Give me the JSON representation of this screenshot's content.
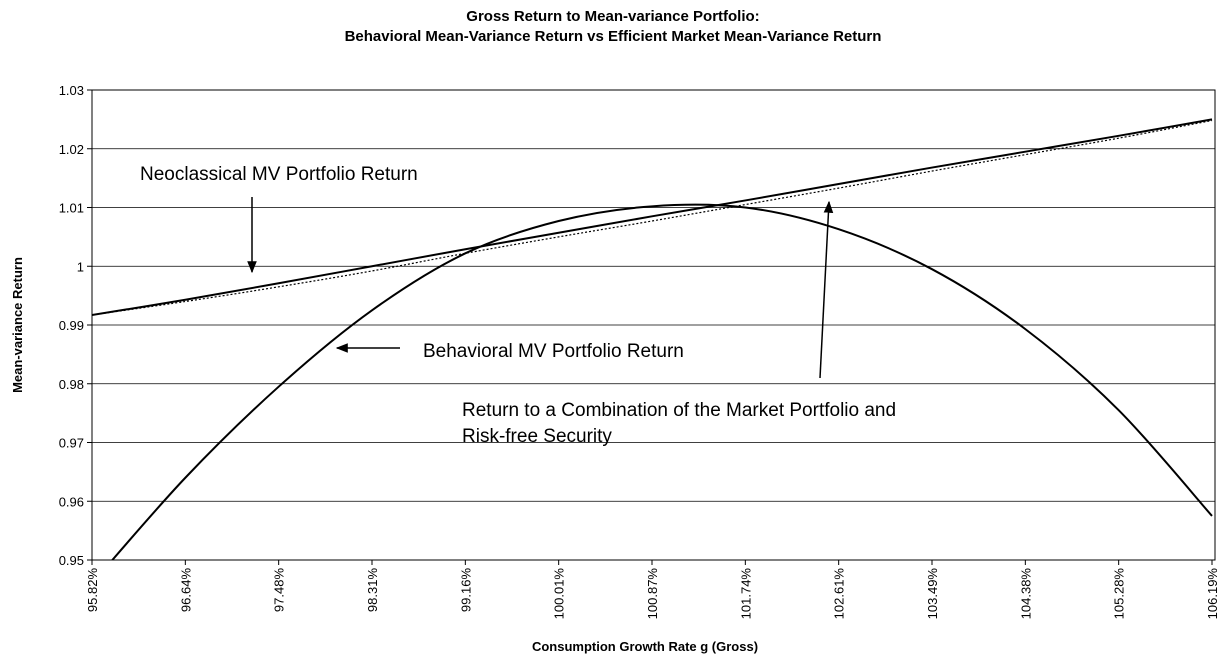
{
  "chart_data": {
    "type": "line",
    "title": [
      "Gross Return to Mean-variance Portfolio:",
      "Behavioral Mean-Variance Return vs Efficient Market Mean-Variance Return"
    ],
    "x_label": "Consumption Growth Rate g (Gross)",
    "y_label": "Mean-variance Return",
    "categories": [
      "95.82%",
      "96.64%",
      "97.48%",
      "98.31%",
      "99.16%",
      "100.01%",
      "100.87%",
      "101.74%",
      "102.61%",
      "103.49%",
      "104.38%",
      "105.28%",
      "106.19%"
    ],
    "series": [
      {
        "color": "#000000",
        "style": "solid",
        "values": [
          0.9917,
          0.9943,
          0.9971,
          1.0,
          1.0029,
          1.0057,
          1.0085,
          1.0112,
          1.014,
          1.0168,
          1.0195,
          1.0222,
          1.025
        ]
      },
      {
        "color": "#000000",
        "style": "dotted",
        "values": [
          0.9917,
          0.994,
          0.9965,
          0.9992,
          1.0022,
          1.005,
          1.0077,
          1.0105,
          1.0133,
          1.0162,
          1.019,
          1.0218,
          1.0248
        ]
      },
      {
        "color": "#000000",
        "style": "solid",
        "values": [
          0.946,
          0.964,
          0.9795,
          0.9925,
          1.0022,
          1.0077,
          1.0102,
          1.01,
          1.0063,
          0.9995,
          0.9893,
          0.9755,
          0.9575
        ]
      }
    ],
    "ylim": [
      0.95,
      1.03
    ],
    "yticks": [
      0.95,
      0.96,
      0.97,
      0.98,
      0.99,
      {
        "value": 1.0,
        "label": "1"
      },
      1.01,
      1.02,
      1.03
    ],
    "grid": true,
    "annotations": [
      {
        "text": [
          "Neoclassical MV Portfolio Return"
        ]
      },
      {
        "text": [
          "Behavioral MV Portfolio Return"
        ]
      },
      {
        "text": [
          "Return to a Combination of the Market Portfolio and",
          "Risk-free Security"
        ]
      }
    ]
  }
}
